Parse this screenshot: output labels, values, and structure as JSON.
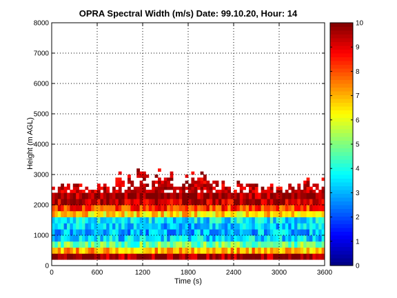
{
  "chart_data": {
    "type": "heatmap",
    "title": "OPRA Spectral Width (m/s)  Date: 99.10.20, Hour: 14",
    "xlabel": "Time (s)",
    "ylabel": "Height (m AGL)",
    "xlim": [
      0,
      3600
    ],
    "ylim": [
      0,
      8000
    ],
    "x_ticks": [
      "0",
      "600",
      "1200",
      "1800",
      "2400",
      "3000",
      "3600"
    ],
    "y_ticks": [
      "0",
      "1000",
      "2000",
      "3000",
      "4000",
      "5000",
      "6000",
      "7000",
      "8000"
    ],
    "grid": true,
    "colorbar": {
      "colormap": "jet",
      "range": [
        0,
        10
      ],
      "ticks": [
        "0",
        "1",
        "2",
        "3",
        "4",
        "5",
        "6",
        "7",
        "8",
        "9",
        "10"
      ]
    },
    "time_step_s": 40,
    "height_bins": [
      {
        "from": 200,
        "to": 400,
        "value": 9.8
      },
      {
        "from": 400,
        "to": 600,
        "value": 7.0
      },
      {
        "from": 600,
        "to": 800,
        "value": 4.8
      },
      {
        "from": 800,
        "to": 1000,
        "value": 3.4
      },
      {
        "from": 1000,
        "to": 1200,
        "value": 3.0
      },
      {
        "from": 1200,
        "to": 1400,
        "value": 3.2
      },
      {
        "from": 1400,
        "to": 1600,
        "value": 3.6
      },
      {
        "from": 1600,
        "to": 1800,
        "value": 6.6
      },
      {
        "from": 1800,
        "to": 2000,
        "value": 8.3
      },
      {
        "from": 2000,
        "to": 2200,
        "value": 9.3
      },
      {
        "from": 2200,
        "to": 2400,
        "value": 9.7
      }
    ],
    "top_echo_ranges_m": [
      2400,
      3300
    ]
  }
}
